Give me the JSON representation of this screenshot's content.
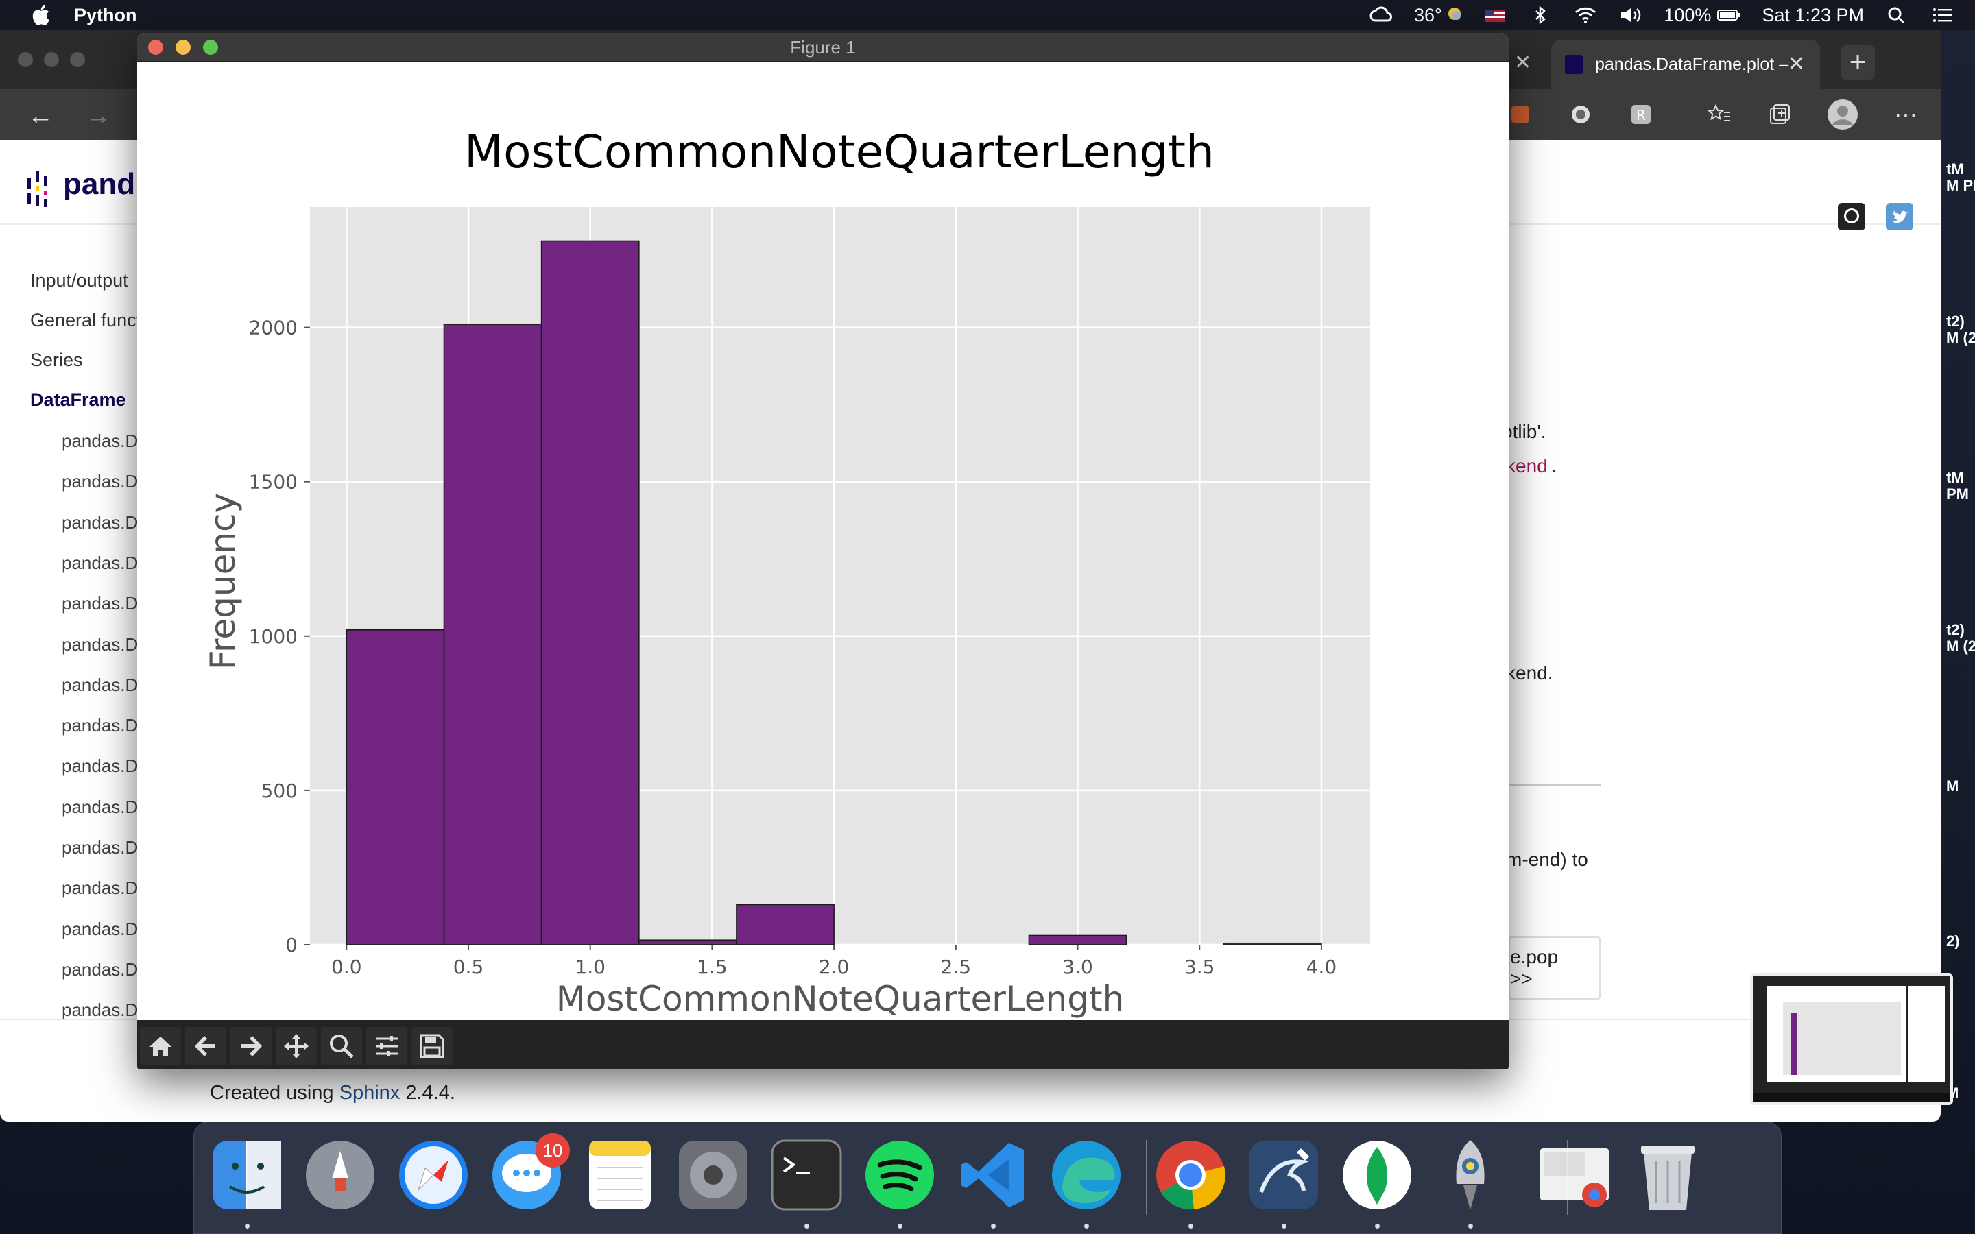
{
  "menubar": {
    "app_name": "Python",
    "temperature": "36°",
    "battery": "100%",
    "clock": "Sat 1:23 PM",
    "icons": [
      "apple-icon",
      "creative-cloud-icon",
      "weather-icon",
      "us-flag-icon",
      "bluetooth-icon",
      "wifi-icon",
      "volume-icon",
      "battery-icon",
      "spotlight-icon",
      "control-center-icon"
    ]
  },
  "browser": {
    "active_tab_title": "pandas.DataFrame.plot –",
    "logo_text": "pand",
    "sidebar": {
      "top_items": [
        "Input/output",
        "General funct",
        "Series",
        "DataFrame"
      ],
      "sub_item": "pandas.D",
      "sub_count": 15
    },
    "content_fragments": [
      "otlib'.",
      "kend",
      ".",
      "kend.",
      "m-end) to"
    ],
    "next_link": "e.pop >>",
    "footer_prefix": "Created using",
    "footer_link": "Sphinx",
    "footer_suffix": "2.4.4.",
    "edge_fragments": [
      "tM",
      "M PM",
      "t2)",
      "M (2",
      "tM",
      "PM",
      "t2)",
      "M (2",
      "M",
      "2)",
      "M"
    ]
  },
  "figure": {
    "window_title": "Figure 1",
    "toolbar": [
      "home-icon",
      "back-arrow-icon",
      "forward-arrow-icon",
      "pan-icon",
      "zoom-icon",
      "subplots-config-icon",
      "save-icon"
    ]
  },
  "chart_data": {
    "type": "bar",
    "title": "MostCommonNoteQuarterLength",
    "xlabel": "MostCommonNoteQuarterLength",
    "ylabel": "Frequency",
    "xlim": [
      -0.15,
      4.2
    ],
    "ylim": [
      0,
      2390
    ],
    "xticks": [
      "0.0",
      "0.5",
      "1.0",
      "1.5",
      "2.0",
      "2.5",
      "3.0",
      "3.5",
      "4.0"
    ],
    "yticks": [
      "0",
      "500",
      "1000",
      "1500",
      "2000"
    ],
    "bin_edges": [
      0.0,
      0.4,
      0.8,
      1.2,
      1.6,
      2.0,
      2.4,
      2.8,
      3.2,
      3.6,
      4.0
    ],
    "values": [
      1020,
      2010,
      2280,
      15,
      130,
      0,
      0,
      30,
      0,
      5
    ],
    "bar_color": "#722581",
    "background": "#e5e5e5",
    "grid": true
  },
  "dock": {
    "apps": [
      "finder-icon",
      "launchpad-icon",
      "safari-icon",
      "messages-icon",
      "notes-icon",
      "system-preferences-icon",
      "terminal-icon",
      "spotify-icon",
      "vscode-icon",
      "edge-icon",
      "chrome-icon",
      "mysql-workbench-icon",
      "mongodb-compass-icon",
      "python-launcher-icon",
      "preview-chrome-icon",
      "trash-icon"
    ],
    "messages_badge": "10"
  }
}
